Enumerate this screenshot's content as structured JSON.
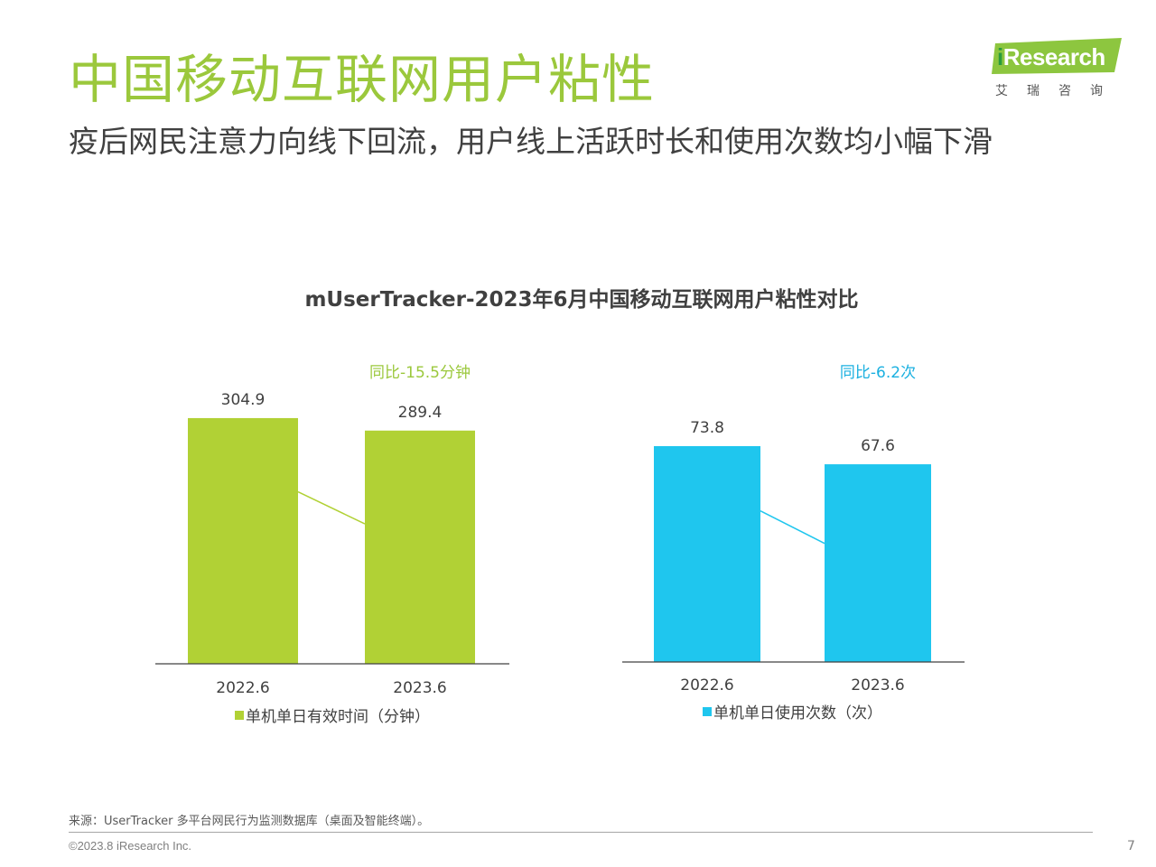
{
  "header": {
    "title": "中国移动互联网用户粘性",
    "subtitle": "疫后网民注意力向线下回流，用户线上活跃时长和使用次数均小幅下滑"
  },
  "logo": {
    "brand_prefix": "i",
    "brand_rest": "Research",
    "sub": "艾瑞咨询"
  },
  "chart_title": "mUserTracker-2023年6月中国移动互联网用户粘性对比",
  "chart_data": [
    {
      "type": "bar",
      "categories": [
        "2022.6",
        "2023.6"
      ],
      "series": [
        {
          "name": "单机单日有效时间（分钟）",
          "values": [
            304.9,
            289.4
          ]
        }
      ],
      "data_labels": [
        "304.9",
        "289.4"
      ],
      "annotation": "同比-15.5分钟",
      "color": "#b1d135",
      "annotation_color": "#9bc83c",
      "legend": "bottom"
    },
    {
      "type": "bar",
      "categories": [
        "2022.6",
        "2023.6"
      ],
      "series": [
        {
          "name": "单机单日使用次数（次）",
          "values": [
            73.8,
            67.6
          ]
        }
      ],
      "data_labels": [
        "73.8",
        "67.6"
      ],
      "annotation": "同比-6.2次",
      "color": "#1fc6ee",
      "annotation_color": "#1ab0e0",
      "legend": "bottom"
    }
  ],
  "footer": {
    "source": "来源：UserTracker 多平台网民行为监测数据库（桌面及智能终端）。",
    "copyright": "©2023.8 iResearch Inc.",
    "page_number": "7"
  }
}
